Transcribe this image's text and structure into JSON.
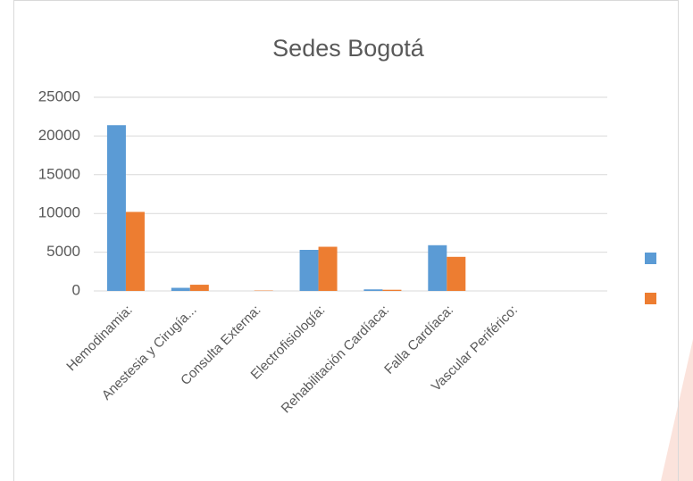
{
  "chart_data": {
    "type": "bar",
    "title": "Sedes Bogotá",
    "categories": [
      "Hemodinamia:",
      "Anestesia y Cirugía...",
      "Consulta Externa:",
      "Electrofisiología:",
      "Rehabilitación Cardíaca:",
      "Falla Cardíaca:",
      "Vascular Periférico:",
      null
    ],
    "series": [
      {
        "color": "#5b9bd5",
        "values": [
          21400,
          400,
          0,
          5300,
          200,
          5900,
          0,
          0
        ]
      },
      {
        "color": "#ed7d31",
        "values": [
          10200,
          800,
          50,
          5700,
          150,
          4400,
          0,
          0
        ]
      }
    ],
    "ylim": [
      0,
      25000
    ],
    "yticks": [
      0,
      5000,
      10000,
      15000,
      20000,
      25000
    ],
    "grid": true,
    "legend": "right"
  }
}
